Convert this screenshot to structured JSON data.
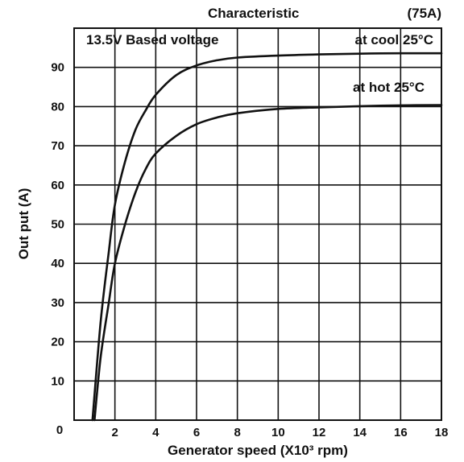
{
  "chart_data": {
    "type": "line",
    "title": "Characteristic",
    "rating": "(75A)",
    "xlabel": "Generator speed (X10³ rpm)",
    "ylabel": "Out put (A)",
    "xlim": [
      0,
      18
    ],
    "ylim": [
      0,
      100
    ],
    "x_ticks": [
      0,
      2,
      4,
      6,
      8,
      10,
      12,
      14,
      16,
      18
    ],
    "y_ticks": [
      0,
      10,
      20,
      30,
      40,
      50,
      60,
      70,
      80,
      90
    ],
    "grid": true,
    "annotation": "13.5V Based voltage",
    "series": [
      {
        "name": "at cool 25°C",
        "x": [
          0.9,
          1.3,
          1.7,
          2.0,
          2.5,
          3.0,
          3.5,
          4.0,
          5.0,
          6.0,
          7.0,
          8.0,
          10.0,
          12.0,
          14.0,
          16.0,
          18.0
        ],
        "y": [
          0,
          25,
          43,
          55,
          66,
          74,
          79,
          83,
          88,
          90.5,
          91.8,
          92.5,
          93.0,
          93.3,
          93.5,
          93.6,
          93.6
        ]
      },
      {
        "name": "at hot 25°C",
        "x": [
          1.0,
          1.3,
          1.7,
          2.0,
          2.5,
          3.0,
          3.5,
          4.0,
          5.0,
          6.0,
          7.0,
          8.0,
          10.0,
          12.0,
          14.0,
          16.0,
          18.0
        ],
        "y": [
          0,
          16,
          30,
          40,
          50,
          58,
          64,
          68,
          72.5,
          75.5,
          77.2,
          78.3,
          79.4,
          79.8,
          80.1,
          80.3,
          80.4
        ]
      }
    ]
  }
}
